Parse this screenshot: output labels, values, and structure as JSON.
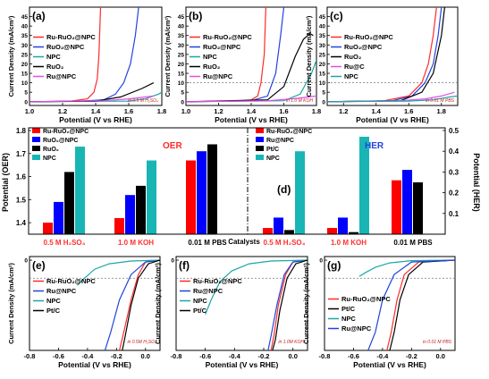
{
  "figure": {
    "catalysts_label": "Catalysts"
  },
  "chart_data": [
    {
      "id": "a",
      "panel_label": "(a)",
      "type": "line",
      "xlabel": "Potential (V vs RHE)",
      "ylabel": "Current Density (mA/cm²)",
      "xlim": [
        1.0,
        1.8
      ],
      "ylim": [
        -2,
        50
      ],
      "xticks": [
        "1.0",
        "1.2",
        "1.4",
        "1.6",
        "1.8"
      ],
      "yticks": [
        "0",
        "5",
        "10",
        "15",
        "20",
        "25",
        "30",
        "35",
        "40",
        "45"
      ],
      "dashed_y": null,
      "condition": "in 0.5 M H₂SO₄",
      "series": [
        {
          "name": "Ru-RuO₂@NPC",
          "color": "#ff2a2a",
          "x": [
            1.0,
            1.25,
            1.35,
            1.39,
            1.41,
            1.42,
            1.43
          ],
          "y": [
            0,
            0.3,
            1.5,
            5,
            12,
            25,
            50
          ]
        },
        {
          "name": "RuO₂@NPC",
          "color": "#2244dd",
          "x": [
            1.0,
            1.3,
            1.45,
            1.52,
            1.57,
            1.61,
            1.64,
            1.66
          ],
          "y": [
            0,
            0.3,
            1,
            4,
            10,
            20,
            35,
            50
          ]
        },
        {
          "name": "NPC",
          "color": "#1aa6a6",
          "x": [
            1.0,
            1.6,
            1.7,
            1.78,
            1.8
          ],
          "y": [
            0,
            0.3,
            1.5,
            4,
            5
          ]
        },
        {
          "name": "RuO₂",
          "color": "#000000",
          "x": [
            1.0,
            1.4,
            1.55,
            1.68,
            1.75
          ],
          "y": [
            0,
            0.3,
            2.5,
            7,
            10
          ]
        },
        {
          "name": "Ru@NPC",
          "color": "#e64ce6",
          "x": [
            1.0,
            1.45,
            1.6,
            1.7,
            1.75
          ],
          "y": [
            0,
            0.5,
            1.5,
            2.5,
            3
          ]
        }
      ]
    },
    {
      "id": "b",
      "panel_label": "(b)",
      "type": "line",
      "xlabel": "Potential (V vs RHE)",
      "ylabel": "Current Density (mA/cm²)",
      "xlim": [
        1.0,
        1.8
      ],
      "ylim": [
        -2,
        50
      ],
      "xticks": [
        "1.0",
        "1.2",
        "1.4",
        "1.6",
        "1.8"
      ],
      "yticks": [
        "0",
        "5",
        "10",
        "15",
        "20",
        "25",
        "30",
        "35",
        "40",
        "45"
      ],
      "dashed_y": 10,
      "condition": "in 1.0 M KOH",
      "series": [
        {
          "name": "Ru-RuO₂@NPC",
          "color": "#ff2a2a",
          "x": [
            1.0,
            1.3,
            1.4,
            1.44,
            1.46,
            1.48,
            1.49
          ],
          "y": [
            0,
            0.3,
            1,
            3,
            10,
            25,
            50
          ]
        },
        {
          "name": "RuO₂@NPC",
          "color": "#2244dd",
          "x": [
            1.0,
            1.4,
            1.5,
            1.55,
            1.58,
            1.6
          ],
          "y": [
            0,
            0.5,
            3,
            15,
            35,
            50
          ]
        },
        {
          "name": "NPC",
          "color": "#1aa6a6",
          "x": [
            1.0,
            1.6,
            1.7,
            1.77,
            1.8
          ],
          "y": [
            0,
            0.5,
            4,
            15,
            22
          ]
        },
        {
          "name": "RuO₂",
          "color": "#000000",
          "x": [
            1.0,
            1.5,
            1.6,
            1.67,
            1.72,
            1.76,
            1.78
          ],
          "y": [
            0,
            1,
            8,
            24,
            33,
            36,
            35
          ]
        },
        {
          "name": "Ru@NPC",
          "color": "#e64ce6",
          "x": [
            1.0,
            1.5,
            1.65,
            1.75,
            1.8
          ],
          "y": [
            0,
            0.5,
            1.5,
            2.5,
            3
          ]
        }
      ]
    },
    {
      "id": "c",
      "panel_label": "(c)",
      "type": "line",
      "xlabel": "Potential (V vs RHE)",
      "ylabel": "Current Density (mA/cm²)",
      "xlim": [
        1.1,
        1.9
      ],
      "ylim": [
        -2,
        50
      ],
      "xticks": [
        "1.2",
        "1.4",
        "1.6",
        "1.8"
      ],
      "yticks": [
        "0",
        "5",
        "10",
        "15",
        "20",
        "25",
        "30",
        "35",
        "40",
        "45"
      ],
      "dashed_y": 10,
      "condition": "in 0.01 M PBS",
      "series": [
        {
          "name": "Ru-RuO₂@NPC",
          "color": "#ff2a2a",
          "x": [
            1.1,
            1.45,
            1.6,
            1.68,
            1.72,
            1.75,
            1.77
          ],
          "y": [
            0,
            0.5,
            3,
            10,
            20,
            35,
            50
          ]
        },
        {
          "name": "RuO₂@NPC",
          "color": "#2244dd",
          "x": [
            1.1,
            1.5,
            1.62,
            1.7,
            1.75,
            1.78,
            1.8
          ],
          "y": [
            0,
            0.5,
            3,
            10,
            20,
            35,
            50
          ]
        },
        {
          "name": "RuO₂",
          "color": "#000000",
          "x": [
            1.1,
            1.55,
            1.68,
            1.75,
            1.8,
            1.82
          ],
          "y": [
            0,
            0.5,
            5,
            15,
            35,
            50
          ]
        },
        {
          "name": "Ru@C",
          "color": "#e64ce6",
          "x": [
            1.1,
            1.55,
            1.7,
            1.8,
            1.88
          ],
          "y": [
            0,
            0.5,
            1.5,
            3,
            5
          ]
        },
        {
          "name": "NPC",
          "color": "#1aa6a6",
          "x": [
            1.1,
            1.6,
            1.75,
            1.85,
            1.9
          ],
          "y": [
            0,
            0.3,
            1,
            2.5,
            3
          ]
        }
      ]
    },
    {
      "id": "oer",
      "panel_label": "",
      "title": "OER",
      "title_color": "#ff2a2a",
      "type": "bar",
      "ylabel": "Potential (OER)",
      "ylim": [
        1.35,
        1.8
      ],
      "yticks": [
        "1.4",
        "1.5",
        "1.6",
        "1.7",
        "1.8"
      ],
      "categories": [
        "0.5 M H₂SO₄",
        "1.0 M KOH",
        "0.01 M PBS"
      ],
      "category_colors": [
        "#ff3030",
        "#ff3030",
        "#000000"
      ],
      "series": [
        {
          "name": "Ru-RuO₂@NPC",
          "color": "#ff0000",
          "values": [
            1.4,
            1.42,
            1.67
          ]
        },
        {
          "name": "RuO₂@NPC",
          "color": "#0000ff",
          "values": [
            1.49,
            1.52,
            1.71
          ]
        },
        {
          "name": "RuO₂",
          "color": "#000000",
          "values": [
            1.62,
            1.56,
            1.74
          ]
        },
        {
          "name": "NPC",
          "color": "#19b5b5",
          "values": [
            1.73,
            1.67,
            null
          ]
        }
      ]
    },
    {
      "id": "her",
      "panel_label": "(d)",
      "title": "HER",
      "title_color": "#2244dd",
      "type": "bar",
      "ylabel": "Potential (HER)",
      "ylim": [
        0.0,
        0.5
      ],
      "yticks": [
        "0.1",
        "0.2",
        "0.3",
        "0.4",
        "0.5"
      ],
      "categories": [
        "0.5 M H₂SO₄",
        "1.0 M KOH",
        "0.01 M PBS"
      ],
      "category_colors": [
        "#ff3030",
        "#ff3030",
        "#000000"
      ],
      "series": [
        {
          "name": "Ru-RuO₂@NPC",
          "color": "#ff0000",
          "values": [
            0.03,
            0.03,
            0.26
          ]
        },
        {
          "name": "Ru@NPC",
          "color": "#0000ff",
          "values": [
            0.08,
            0.08,
            0.31
          ]
        },
        {
          "name": "Pt/C",
          "color": "#000000",
          "values": [
            0.02,
            0.01,
            0.25
          ]
        },
        {
          "name": "NPC",
          "color": "#19b5b5",
          "values": [
            0.4,
            0.47,
            null
          ]
        }
      ]
    },
    {
      "id": "e",
      "panel_label": "(e)",
      "type": "line",
      "xlabel": "Potential (V vs RHE)",
      "ylabel": "Current Density (mA/cm²)",
      "xlim": [
        -0.8,
        0.1
      ],
      "ylim": [
        -50,
        2
      ],
      "xticks": [
        "-0.8",
        "-0.6",
        "-0.4",
        "-0.2",
        "0.0"
      ],
      "yticks": [
        "0"
      ],
      "dashed_y": -10,
      "condition": "in 0.5M H₂SO₄",
      "series": [
        {
          "name": "Ru-RuO₂@NPC",
          "color": "#ff2a2a",
          "x": [
            0.1,
            0.0,
            -0.05,
            -0.1,
            -0.15,
            -0.18
          ],
          "y": [
            0,
            -1,
            -8,
            -22,
            -40,
            -50
          ]
        },
        {
          "name": "Ru@NPC",
          "color": "#2244dd",
          "x": [
            0.1,
            0.0,
            -0.1,
            -0.18,
            -0.24,
            -0.28
          ],
          "y": [
            0,
            -1,
            -8,
            -22,
            -40,
            -50
          ]
        },
        {
          "name": "NPC",
          "color": "#1aa6a6",
          "x": [
            0.1,
            -0.1,
            -0.25,
            -0.35,
            -0.42,
            -0.47
          ],
          "y": [
            0,
            -0.5,
            -2,
            -5,
            -10,
            -14
          ]
        },
        {
          "name": "Pt/C",
          "color": "#000000",
          "x": [
            0.1,
            0.02,
            -0.05,
            -0.1,
            -0.14,
            -0.16
          ],
          "y": [
            0,
            -2,
            -10,
            -25,
            -42,
            -50
          ]
        }
      ]
    },
    {
      "id": "f",
      "panel_label": "(f)",
      "type": "line",
      "xlabel": "Potential (V vs RHE)",
      "ylabel": "Current Density (mA/cm²)",
      "xlim": [
        -0.8,
        0.1
      ],
      "ylim": [
        -50,
        2
      ],
      "xticks": [
        "-0.8",
        "-0.6",
        "-0.4",
        "-0.2",
        "0.0"
      ],
      "yticks": [
        "0"
      ],
      "dashed_y": -10,
      "condition": "in 1.0M KOH",
      "series": [
        {
          "name": "Ru-RuO₂@NPC",
          "color": "#ff2a2a",
          "x": [
            0.1,
            0.0,
            -0.05,
            -0.1,
            -0.13,
            -0.15
          ],
          "y": [
            0,
            -1,
            -8,
            -25,
            -42,
            -50
          ]
        },
        {
          "name": "Ru@NPC",
          "color": "#2244dd",
          "x": [
            0.1,
            0.0,
            -0.06,
            -0.11,
            -0.15,
            -0.17
          ],
          "y": [
            0,
            -1,
            -8,
            -25,
            -42,
            -50
          ]
        },
        {
          "name": "NPC",
          "color": "#1aa6a6",
          "x": [
            0.1,
            -0.15,
            -0.3,
            -0.42,
            -0.5,
            -0.56,
            -0.6
          ],
          "y": [
            0,
            -0.5,
            -2,
            -6,
            -12,
            -22,
            -30
          ]
        },
        {
          "name": "Pt/C",
          "color": "#000000",
          "x": [
            0.1,
            0.02,
            -0.04,
            -0.09,
            -0.12,
            -0.14
          ],
          "y": [
            0,
            -2,
            -10,
            -28,
            -44,
            -50
          ]
        }
      ]
    },
    {
      "id": "g",
      "panel_label": "(g)",
      "type": "line",
      "xlabel": "Potential (V vs RHE)",
      "ylabel": "Current Density (mA/cm²)",
      "xlim": [
        -0.8,
        0.1
      ],
      "ylim": [
        -50,
        2
      ],
      "xticks": [
        "-0.8",
        "-0.6",
        "-0.4",
        "-0.2",
        "0.0"
      ],
      "yticks": [
        "0"
      ],
      "dashed_y": -10,
      "condition": "in 0.01 M PBS",
      "series": [
        {
          "name": "Ru-RuO₂@NPC",
          "color": "#ff2a2a",
          "x": [
            0.1,
            -0.15,
            -0.25,
            -0.3,
            -0.34,
            -0.37
          ],
          "y": [
            0,
            -1,
            -8,
            -22,
            -40,
            -50
          ]
        },
        {
          "name": "Pt/C",
          "color": "#000000",
          "x": [
            0.1,
            -0.12,
            -0.22,
            -0.28,
            -0.32,
            -0.35
          ],
          "y": [
            0,
            -1,
            -8,
            -22,
            -40,
            -50
          ]
        },
        {
          "name": "NPC",
          "color": "#1aa6a6",
          "x": [
            0.1,
            -0.2,
            -0.35,
            -0.45,
            -0.52,
            -0.56
          ],
          "y": [
            0,
            -0.3,
            -1.5,
            -4,
            -7,
            -9
          ]
        },
        {
          "name": "Ru@NPC",
          "color": "#2244dd",
          "x": [
            0.1,
            -0.2,
            -0.32,
            -0.4,
            -0.45,
            -0.5
          ],
          "y": [
            0,
            -1,
            -8,
            -22,
            -40,
            -50
          ]
        }
      ]
    }
  ]
}
